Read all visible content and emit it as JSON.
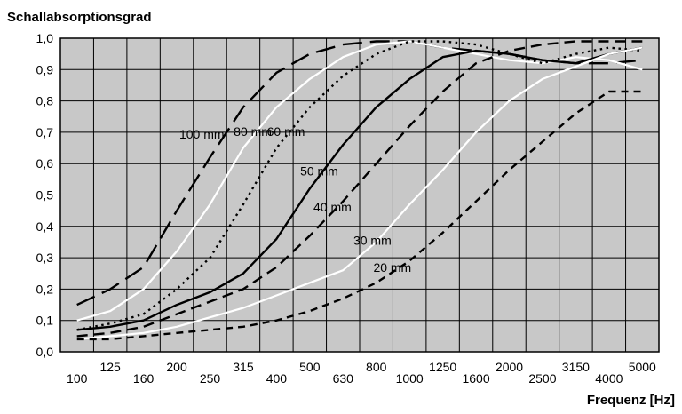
{
  "chart_data": {
    "type": "line",
    "ylabel": "Schallabsorptionsgrad",
    "xlabel": "Frequenz [Hz]",
    "ylim": [
      0,
      1.0
    ],
    "grid": true,
    "colors": {
      "plot_bg": "#c8c8c8",
      "grid": "#000000"
    },
    "y_ticks": [
      "0,0",
      "0,1",
      "0,2",
      "0,3",
      "0,4",
      "0,5",
      "0,6",
      "0,7",
      "0,8",
      "0,9",
      "1,0"
    ],
    "x": [
      "100",
      "125",
      "160",
      "200",
      "250",
      "315",
      "400",
      "500",
      "630",
      "800",
      "1000",
      "1250",
      "1600",
      "2000",
      "2500",
      "3150",
      "4000",
      "5000"
    ],
    "series": [
      {
        "name": "100 mm",
        "color": "#000000",
        "dash": "long-dash",
        "values": [
          0.15,
          0.2,
          0.27,
          0.45,
          0.62,
          0.78,
          0.89,
          0.95,
          0.98,
          0.99,
          0.99,
          0.97,
          0.96,
          0.95,
          0.93,
          0.92,
          0.92,
          0.93
        ]
      },
      {
        "name": "80 mm",
        "color": "#ffffff",
        "dash": "solid",
        "values": [
          0.1,
          0.13,
          0.2,
          0.32,
          0.47,
          0.65,
          0.78,
          0.87,
          0.94,
          0.98,
          0.99,
          0.97,
          0.95,
          0.93,
          0.92,
          0.94,
          0.93,
          0.9
        ]
      },
      {
        "name": "60 mm",
        "color": "#000000",
        "dash": "dotted",
        "values": [
          0.07,
          0.09,
          0.12,
          0.2,
          0.3,
          0.47,
          0.65,
          0.78,
          0.88,
          0.95,
          0.99,
          0.99,
          0.98,
          0.95,
          0.92,
          0.95,
          0.97,
          0.96
        ]
      },
      {
        "name": "50 mm",
        "color": "#000000",
        "dash": "solid",
        "values": [
          0.07,
          0.08,
          0.1,
          0.15,
          0.19,
          0.25,
          0.36,
          0.52,
          0.66,
          0.78,
          0.87,
          0.94,
          0.96,
          0.95,
          0.93,
          0.92,
          0.95,
          0.97
        ]
      },
      {
        "name": "40 mm",
        "color": "#000000",
        "dash": "dashed",
        "values": [
          0.05,
          0.06,
          0.08,
          0.12,
          0.16,
          0.2,
          0.27,
          0.37,
          0.48,
          0.6,
          0.72,
          0.83,
          0.92,
          0.96,
          0.98,
          0.99,
          0.99,
          0.99
        ]
      },
      {
        "name": "30 mm",
        "color": "#ffffff",
        "dash": "solid",
        "values": [
          0.04,
          0.05,
          0.06,
          0.08,
          0.11,
          0.14,
          0.18,
          0.22,
          0.26,
          0.35,
          0.47,
          0.58,
          0.7,
          0.8,
          0.87,
          0.91,
          0.95,
          0.97
        ]
      },
      {
        "name": "20 mm",
        "color": "#000000",
        "dash": "short-dash",
        "values": [
          0.04,
          0.04,
          0.05,
          0.06,
          0.07,
          0.08,
          0.1,
          0.13,
          0.17,
          0.22,
          0.29,
          0.38,
          0.48,
          0.58,
          0.67,
          0.76,
          0.83,
          0.83
        ]
      }
    ]
  }
}
